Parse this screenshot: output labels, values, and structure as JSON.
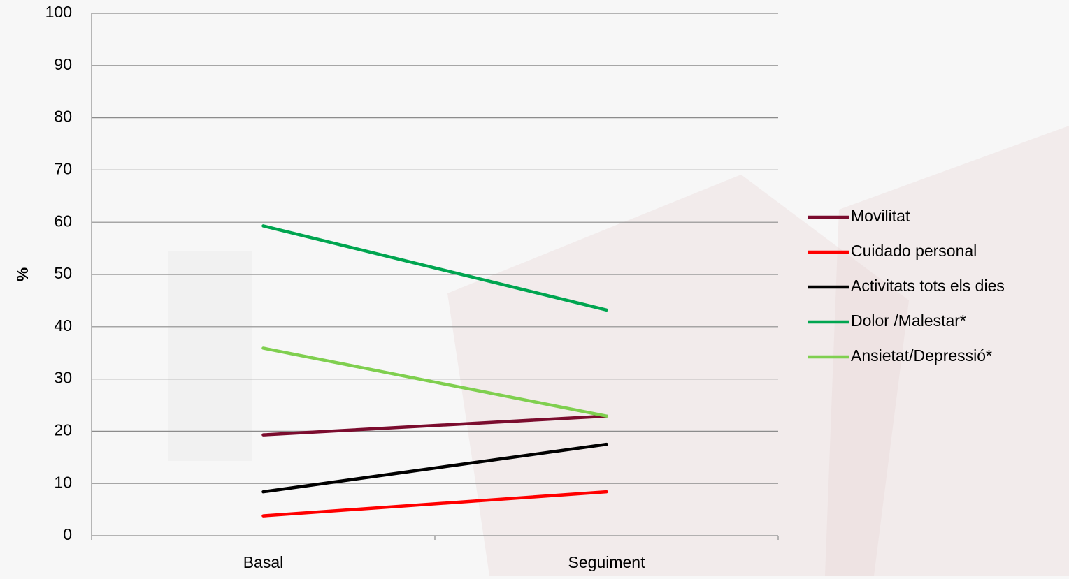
{
  "chart_data": {
    "type": "line",
    "title": "",
    "xlabel": "",
    "ylabel": "%",
    "categories": [
      "Basal",
      "Seguiment"
    ],
    "ylim": [
      0,
      100
    ],
    "yticks": [
      0,
      10,
      20,
      30,
      40,
      50,
      60,
      70,
      80,
      90,
      100
    ],
    "grid": true,
    "legend_position": "right",
    "series": [
      {
        "name": "Movilitat",
        "color": "#7b0c2e",
        "values": [
          19.3,
          22.9
        ]
      },
      {
        "name": "Cuidado personal",
        "color": "#ff0000",
        "values": [
          3.8,
          8.4
        ]
      },
      {
        "name": "Activitats tots els dies",
        "color": "#000000",
        "values": [
          8.4,
          17.5
        ]
      },
      {
        "name": "Dolor /Malestar*",
        "color": "#00a550",
        "values": [
          59.3,
          43.2
        ]
      },
      {
        "name": "Ansietat/Depressió*",
        "color": "#7fcf4f",
        "values": [
          35.9,
          22.9
        ]
      }
    ]
  },
  "background": {
    "base": "#f7f7f7",
    "watermark": "#e9d3d3"
  }
}
